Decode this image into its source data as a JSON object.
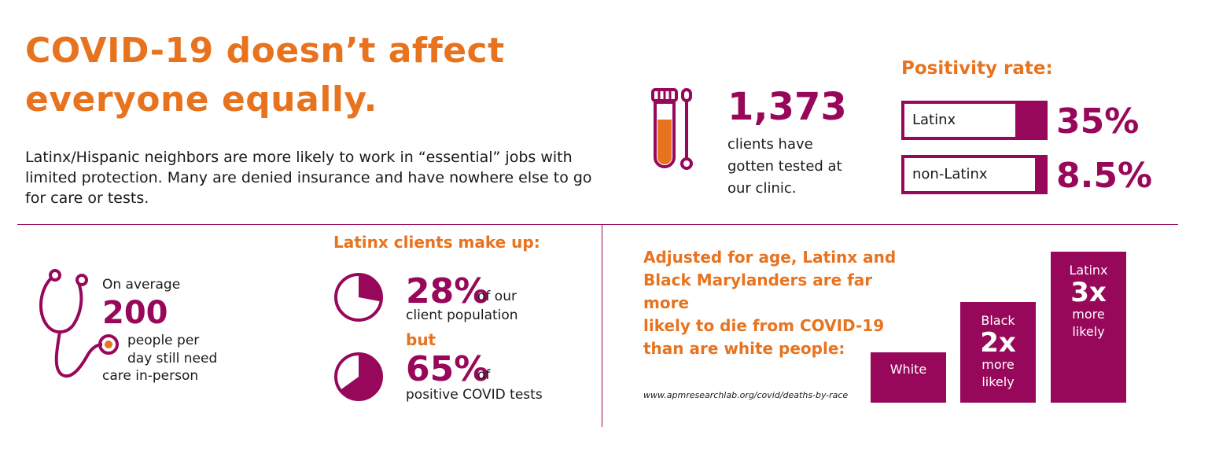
{
  "header": {
    "title_line1": "COVID-19 doesn’t affect",
    "title_line2": "everyone equally.",
    "intro": "Latinx/Hispanic neighbors are more likely to work in “essential” jobs with limited protection. Many are denied insurance and have nowhere else to go for care or tests."
  },
  "testing": {
    "icon": "test-tube-swab-icon",
    "count": "1,373",
    "desc_lines": [
      "clients have",
      "gotten tested at",
      "our clinic."
    ]
  },
  "positivity": {
    "title": "Positivity rate:",
    "rows": [
      {
        "label": "Latinx",
        "value": "35%",
        "fraction": 0.35
      },
      {
        "label": "non-Latinx",
        "value": "8.5%",
        "fraction": 0.085
      }
    ]
  },
  "in_person": {
    "icon": "stethoscope-icon",
    "pre": "On average",
    "number": "200",
    "desc_lines": [
      "people per",
      "day still need"
    ],
    "post": "care in-person"
  },
  "latinx_share": {
    "title": "Latinx clients make up:",
    "client_pct": "28%",
    "client_suffix": "of our",
    "client_line2": "client population",
    "but": "but",
    "positive_pct": "65%",
    "positive_suffix": "of",
    "positive_line2": "positive COVID tests",
    "client_fraction": 0.28,
    "positive_fraction": 0.65
  },
  "mortality": {
    "title_lines": [
      "Adjusted for age, Latinx and",
      "Black Marylanders are far more",
      "likely to die from COVID-19",
      "than are white people:"
    ],
    "source": "www.apmresearchlab.org/covid/deaths-by-race",
    "bars": [
      {
        "label": "White",
        "multiplier": "",
        "note": "",
        "value": 1
      },
      {
        "label": "Black",
        "multiplier": "2x",
        "note_lines": [
          "more",
          "likely"
        ],
        "value": 2
      },
      {
        "label": "Latinx",
        "multiplier": "3x",
        "note_lines": [
          "more",
          "likely"
        ],
        "value": 3
      }
    ]
  },
  "colors": {
    "accent_orange": "#e8731f",
    "brand_plum": "#98085a"
  }
}
